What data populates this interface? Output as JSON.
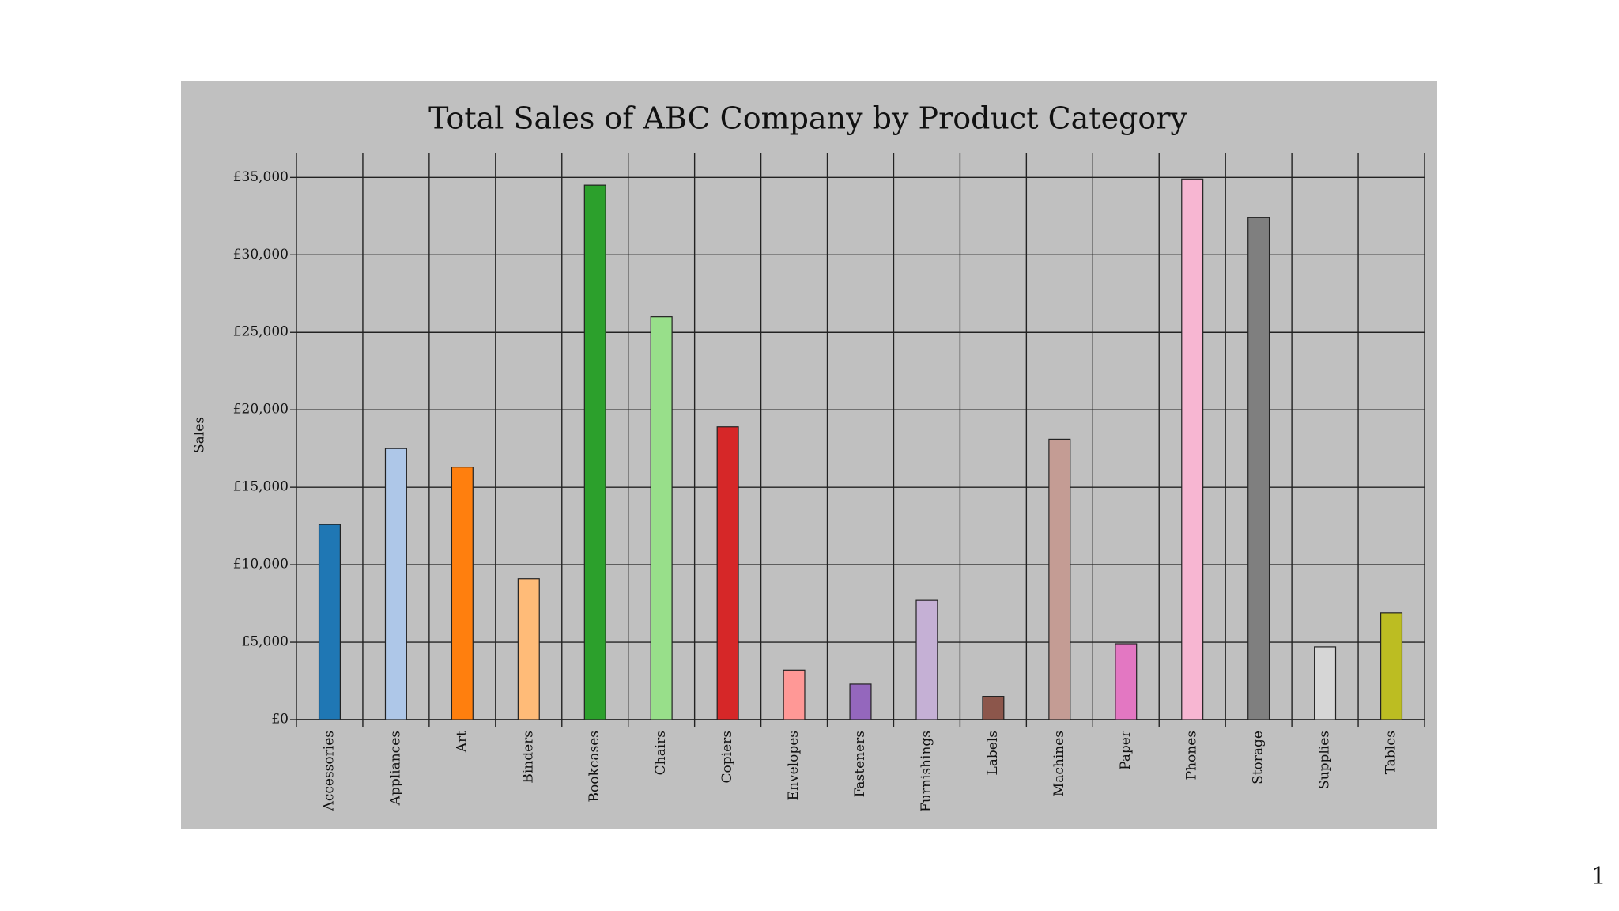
{
  "chart_data": {
    "type": "bar",
    "title": "Total Sales of ABC Company by Product Category",
    "y_label": "Sales",
    "categories": [
      "Accessories",
      "Appliances",
      "Art",
      "Binders",
      "Bookcases",
      "Chairs",
      "Copiers",
      "Envelopes",
      "Fasteners",
      "Furnishings",
      "Labels",
      "Machines",
      "Paper",
      "Phones",
      "Storage",
      "Supplies",
      "Tables"
    ],
    "values": [
      12600,
      17500,
      16300,
      9100,
      34500,
      26000,
      18900,
      3200,
      2300,
      7700,
      1500,
      18100,
      4900,
      34900,
      32400,
      4700,
      6900
    ],
    "colors": [
      "#1f77b4",
      "#aec7e8",
      "#ff7f0e",
      "#ffbb78",
      "#2ca02c",
      "#98df8a",
      "#d62728",
      "#ff9896",
      "#9467bd",
      "#c5b0d5",
      "#8c564b",
      "#c49c94",
      "#e377c2",
      "#f7b6d2",
      "#7f7f7f",
      "#d6d6d6",
      "#bcbd22"
    ],
    "ylim": [
      0,
      36600
    ],
    "yticks": [
      {
        "value": 0,
        "label": "£0"
      },
      {
        "value": 5000,
        "label": "£5,000"
      },
      {
        "value": 10000,
        "label": "£10,000"
      },
      {
        "value": 15000,
        "label": "£15,000"
      },
      {
        "value": 20000,
        "label": "£20,000"
      },
      {
        "value": 25000,
        "label": "£25,000"
      },
      {
        "value": 30000,
        "label": "£30,000"
      },
      {
        "value": 35000,
        "label": "£35,000"
      }
    ],
    "grid": true
  },
  "slide": {
    "number": "1"
  }
}
